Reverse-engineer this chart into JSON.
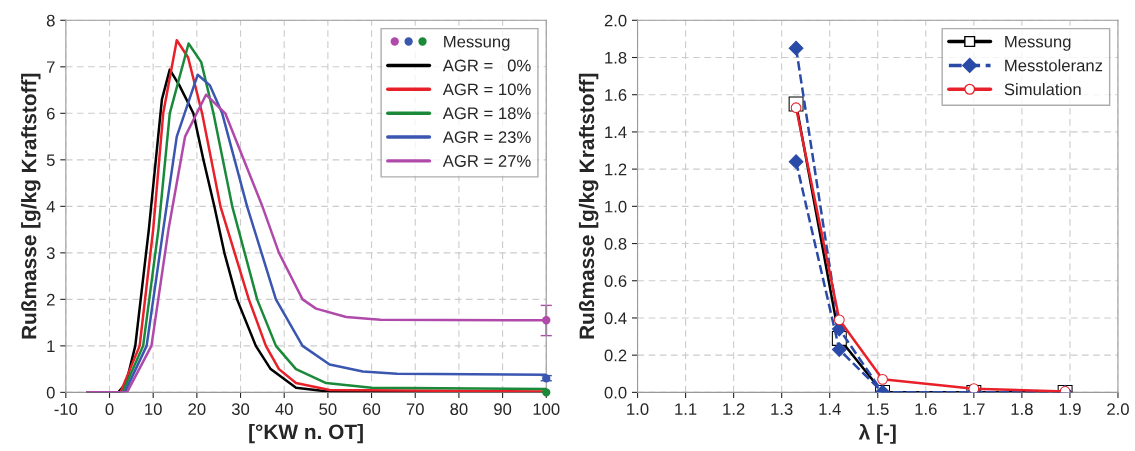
{
  "chart_data": [
    {
      "type": "line",
      "xlabel": "[°KW n. OT]",
      "ylabel": "Rußmasse [g/kg Kraftstoff]",
      "xlim": [
        -10,
        100
      ],
      "xticks": [
        -10,
        0,
        10,
        20,
        30,
        40,
        50,
        60,
        70,
        80,
        90,
        100
      ],
      "ylim": [
        0,
        8
      ],
      "yticks": [
        0,
        1,
        2,
        3,
        4,
        5,
        6,
        7,
        8
      ],
      "grid": true,
      "legend": "top right",
      "series": [
        {
          "type": "scatter",
          "name": "Messung",
          "colors": [
            "#b04aaa",
            "#3a56b0",
            "#1a8a3a"
          ],
          "marker": "circle",
          "x": [
            100,
            100,
            100
          ],
          "values": [
            1.55,
            0.3,
            0.0
          ],
          "errors": [
            [
              1.22,
              1.87
            ],
            [
              0.25,
              0.36
            ],
            null
          ]
        },
        {
          "name": "AGR =   0%",
          "color": "#000000",
          "x": [
            -5,
            2,
            3.8,
            5.9,
            9,
            12,
            13.8,
            16,
            19.2,
            21.5,
            24,
            26.3,
            29.2,
            33.5,
            36.9,
            42.7,
            50,
            60,
            100
          ],
          "values": [
            0,
            0,
            0.2,
            1,
            3.5,
            6.3,
            6.94,
            6.6,
            6,
            5,
            4,
            3,
            2,
            1,
            0.5,
            0.1,
            0.02,
            0,
            0
          ]
        },
        {
          "name": "AGR = 10%",
          "color": "#e8202a",
          "x": [
            -5,
            2.5,
            6.9,
            10,
            12.3,
            15.4,
            18,
            21.2,
            25.4,
            31.9,
            35.8,
            38.8,
            42.7,
            50.4,
            100
          ],
          "values": [
            0,
            0,
            1,
            3.5,
            6,
            7.57,
            7.2,
            6,
            4,
            2,
            1,
            0.5,
            0.2,
            0.05,
            0.02
          ]
        },
        {
          "name": "AGR = 18%",
          "color": "#1a8a3a",
          "x": [
            -5,
            3,
            7.7,
            11.2,
            13.8,
            18.1,
            21,
            23.8,
            28.1,
            33.8,
            38.1,
            42.7,
            49.6,
            60,
            100
          ],
          "values": [
            0,
            0,
            1,
            3.5,
            6,
            7.5,
            7.1,
            6,
            4,
            2,
            1,
            0.5,
            0.2,
            0.1,
            0.07
          ]
        },
        {
          "name": "AGR = 23%",
          "color": "#3a56b0",
          "x": [
            -5,
            3.5,
            8.5,
            12.3,
            15.4,
            20.2,
            23,
            25.8,
            31.5,
            38.1,
            44.2,
            50.4,
            58,
            65.8,
            100
          ],
          "values": [
            0,
            0,
            1,
            3.5,
            5.5,
            6.83,
            6.6,
            6,
            4,
            2,
            1,
            0.6,
            0.45,
            0.4,
            0.38
          ]
        },
        {
          "name": "AGR = 27%",
          "color": "#b04aaa",
          "x": [
            -5,
            4,
            9.6,
            13.5,
            17.3,
            22.1,
            26.5,
            35,
            38.8,
            44.2,
            47.3,
            54.2,
            62,
            100
          ],
          "values": [
            0,
            0,
            1,
            3.5,
            5.5,
            6.4,
            6,
            4,
            3,
            2,
            1.8,
            1.62,
            1.56,
            1.55
          ]
        }
      ]
    },
    {
      "type": "line",
      "xlabel": "λ [-]",
      "ylabel": "Rußmasse [g/kg Kraftstoff]",
      "xlim": [
        1.0,
        2.0
      ],
      "xticks": [
        {
          "value": 1.0,
          "label": "1.0"
        },
        1.1,
        1.2,
        1.3,
        1.4,
        1.5,
        1.6,
        1.7,
        1.8,
        1.9,
        {
          "value": 2.0,
          "label": "2.0"
        }
      ],
      "ylim": [
        0,
        2
      ],
      "yticks": [
        {
          "value": 0,
          "label": "0.0"
        },
        0.2,
        0.4,
        0.6,
        0.8,
        {
          "value": 1,
          "label": "1.0"
        },
        1.2,
        1.4,
        1.6,
        1.8,
        {
          "value": 2,
          "label": "2.0"
        }
      ],
      "grid": true,
      "legend": "top right",
      "x": [
        1.33,
        1.42,
        1.51,
        1.7,
        1.89
      ],
      "series": [
        {
          "name": "Messung",
          "color": "#000000",
          "marker": "square",
          "line_style": "solid",
          "values": [
            1.55,
            0.29,
            0,
            0,
            0
          ]
        },
        {
          "name": "Messtoleranz",
          "color": "#2a4aa8",
          "marker": "diamond",
          "line_style": "dashed",
          "values": [
            1.85,
            0.34,
            0,
            0,
            0
          ]
        },
        {
          "color": "#2a4aa8",
          "marker": "diamond",
          "line_style": "dashed",
          "values": [
            1.24,
            0.23,
            0,
            0,
            0
          ]
        },
        {
          "name": "Simulation",
          "color": "#e8202a",
          "marker": "circle",
          "line_style": "solid",
          "values": [
            1.53,
            0.39,
            0.07,
            0.02,
            0.005
          ]
        }
      ]
    }
  ]
}
